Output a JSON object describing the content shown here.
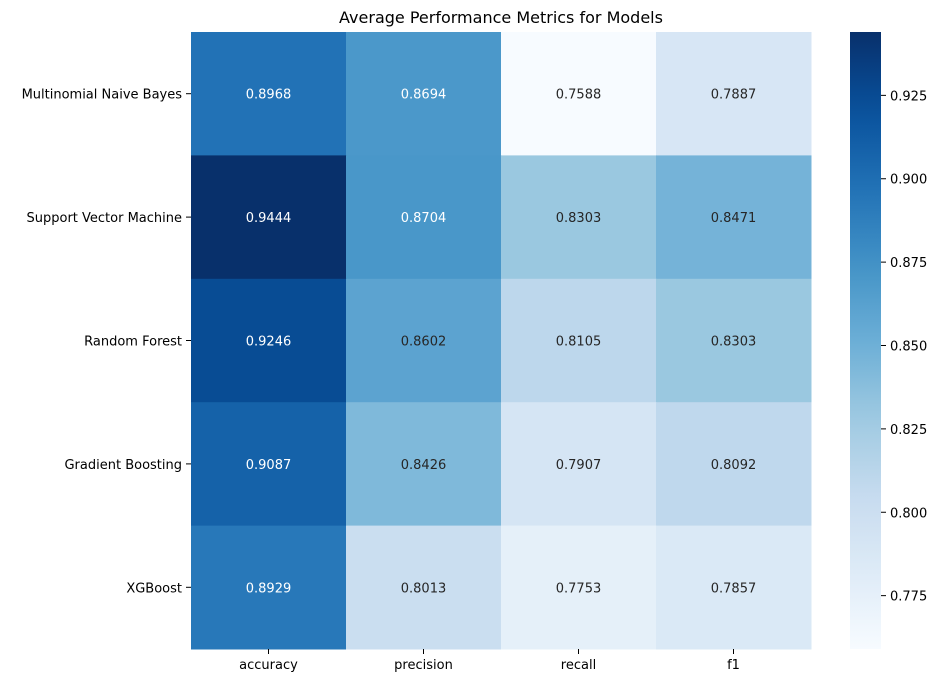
{
  "chart_data": {
    "type": "heatmap",
    "title": "Average Performance Metrics for Models",
    "x_categories": [
      "accuracy",
      "precision",
      "recall",
      "f1"
    ],
    "y_categories": [
      "Multinomial Naive Bayes",
      "Support Vector Machine",
      "Random Forest",
      "Gradient Boosting",
      "XGBoost"
    ],
    "values": [
      [
        0.8968,
        0.8694,
        0.7588,
        0.7887
      ],
      [
        0.9444,
        0.8704,
        0.8303,
        0.8471
      ],
      [
        0.9246,
        0.8602,
        0.8105,
        0.8303
      ],
      [
        0.9087,
        0.8426,
        0.7907,
        0.8092
      ],
      [
        0.8929,
        0.8013,
        0.7753,
        0.7857
      ]
    ],
    "value_labels": [
      [
        "0.8968",
        "0.8694",
        "0.7588",
        "0.7887"
      ],
      [
        "0.9444",
        "0.8704",
        "0.8303",
        "0.8471"
      ],
      [
        "0.9246",
        "0.8602",
        "0.8105",
        "0.8303"
      ],
      [
        "0.9087",
        "0.8426",
        "0.7907",
        "0.8092"
      ],
      [
        "0.8929",
        "0.8013",
        "0.7753",
        "0.7857"
      ]
    ],
    "colormap": "Blues",
    "colorbar": {
      "range": [
        0.759,
        0.944
      ],
      "ticks": [
        0.775,
        0.8,
        0.825,
        0.85,
        0.875,
        0.9,
        0.925
      ],
      "tick_labels": [
        "0.775",
        "0.800",
        "0.825",
        "0.850",
        "0.875",
        "0.900",
        "0.925"
      ]
    },
    "xlabel": "",
    "ylabel": ""
  }
}
